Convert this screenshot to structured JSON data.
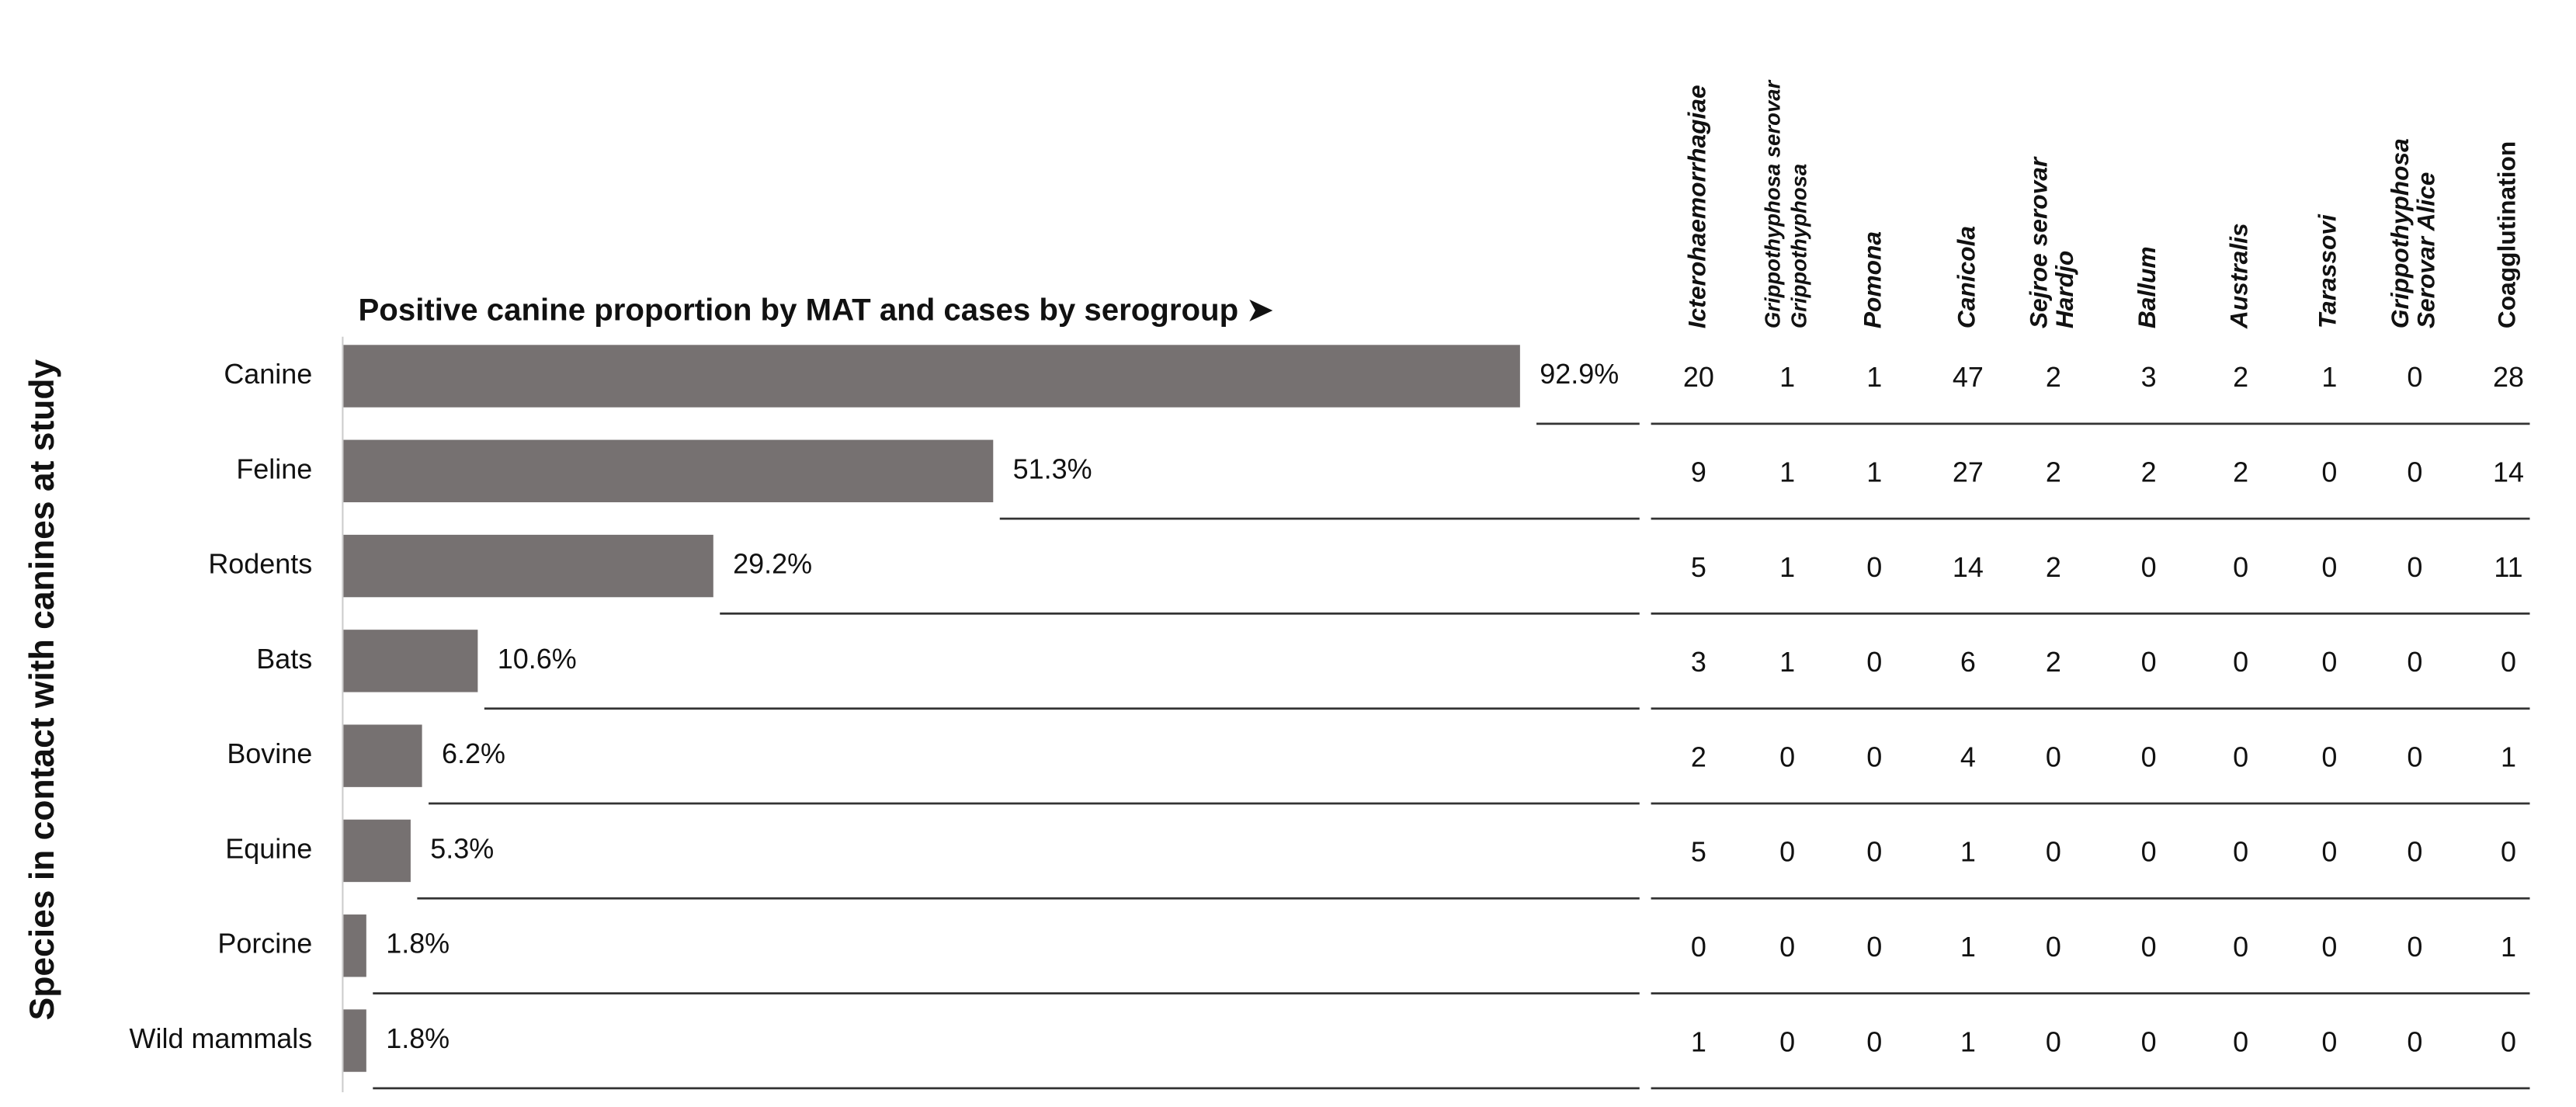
{
  "chart_data": {
    "type": "bar",
    "title": "Positive canine proportion by MAT and cases by serogroup ➤",
    "y_label": "Species in contact with canines at study",
    "categories": [
      "Canine",
      "Feline",
      "Rodents",
      "Bats",
      "Bovine",
      "Equine",
      "Porcine",
      "Wild mammals"
    ],
    "values": [
      92.9,
      51.3,
      29.2,
      10.6,
      6.2,
      5.3,
      1.8,
      1.8
    ],
    "value_labels": [
      "92.9%",
      "51.3%",
      "29.2%",
      "10.6%",
      "6.2%",
      "5.3%",
      "1.8%",
      "1.8%"
    ],
    "color": "#767171",
    "table": {
      "columns": [
        [
          "Icterohaemorrhagiae"
        ],
        [
          "Grippothyphosa serovar",
          "Grippothyphosa"
        ],
        [
          "Pomona"
        ],
        [
          "Canicola"
        ],
        [
          "Sejroe  serovar",
          "Hardjo"
        ],
        [
          "Ballum"
        ],
        [
          "Australis"
        ],
        [
          "Tarassovi"
        ],
        [
          "Grippothyphosa",
          "Serovar Alice"
        ],
        [
          "Coagglutination"
        ]
      ],
      "rows": [
        [
          20,
          1,
          1,
          47,
          2,
          3,
          2,
          1,
          0,
          28
        ],
        [
          9,
          1,
          1,
          27,
          2,
          2,
          2,
          0,
          0,
          14
        ],
        [
          5,
          1,
          0,
          14,
          2,
          0,
          0,
          0,
          0,
          11
        ],
        [
          3,
          1,
          0,
          6,
          2,
          0,
          0,
          0,
          0,
          0
        ],
        [
          2,
          0,
          0,
          4,
          0,
          0,
          0,
          0,
          0,
          1
        ],
        [
          5,
          0,
          0,
          1,
          0,
          0,
          0,
          0,
          0,
          0
        ],
        [
          0,
          0,
          0,
          1,
          0,
          0,
          0,
          0,
          0,
          1
        ],
        [
          1,
          0,
          0,
          1,
          0,
          0,
          0,
          0,
          0,
          0
        ]
      ]
    }
  }
}
